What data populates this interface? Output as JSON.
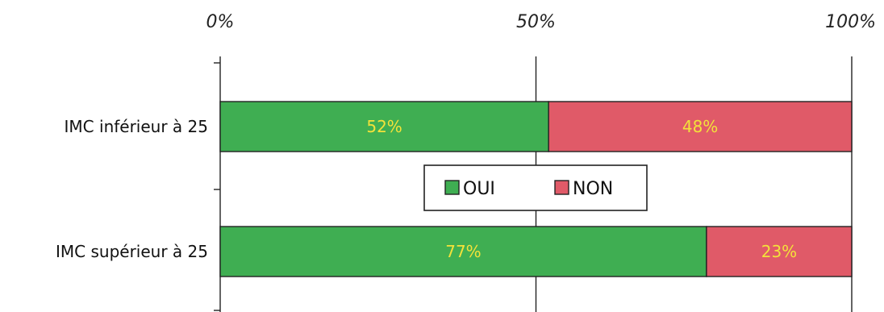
{
  "chart_data": {
    "type": "bar",
    "orientation": "horizontal",
    "stacked": true,
    "categories": [
      "IMC inférieur à 25",
      "IMC supérieur à 25"
    ],
    "series": [
      {
        "name": "OUI",
        "values": [
          52,
          77
        ],
        "color": "#3fae52"
      },
      {
        "name": "NON",
        "values": [
          48,
          23
        ],
        "color": "#e05a68"
      }
    ],
    "value_labels": [
      [
        "52%",
        "77%"
      ],
      [
        "48%",
        "23%"
      ]
    ],
    "data_label_color": "#f3e23a",
    "x_ticks": [
      0,
      50,
      100
    ],
    "x_tick_labels": [
      "0%",
      "50%",
      "100%"
    ],
    "xlim": [
      0,
      100
    ],
    "axis_position": "top",
    "grid": true,
    "legend": {
      "placement": "center",
      "entries": [
        "OUI",
        "NON"
      ]
    },
    "title": "",
    "xlabel": "",
    "ylabel": ""
  }
}
